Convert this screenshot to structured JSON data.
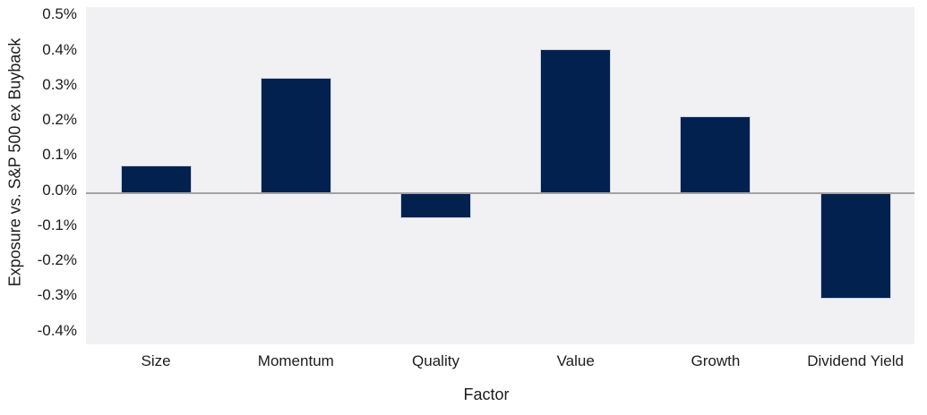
{
  "chart_data": {
    "type": "bar",
    "xlabel": "Factor",
    "ylabel": "Exposure vs. S&P 500 ex Buyback",
    "categories": [
      "Size",
      "Momentum",
      "Quality",
      "Value",
      "Growth",
      "Dividend Yield"
    ],
    "values": [
      0.08,
      0.33,
      -0.07,
      0.41,
      0.22,
      -0.3
    ],
    "unit": "%",
    "yticks": [
      0.5,
      0.4,
      0.3,
      0.2,
      0.1,
      0.0,
      -0.1,
      -0.2,
      -0.3,
      -0.4
    ],
    "ytick_labels": [
      "0.5%",
      "0.4%",
      "0.3%",
      "0.2%",
      "0.1%",
      "0.0%",
      "-0.1%",
      "-0.2%",
      "-0.3%",
      "-0.4%"
    ],
    "ylim": [
      -0.43,
      0.53
    ],
    "grid": false,
    "legend": false,
    "colors": {
      "bar_fill": "#03214F",
      "bar_border": "#C9D4E2",
      "plot_background": "#F1F1F4",
      "page_background": "#FFFFFF",
      "zero_axis_line": "#A3A3A3",
      "text": "#1C1C1C"
    }
  }
}
